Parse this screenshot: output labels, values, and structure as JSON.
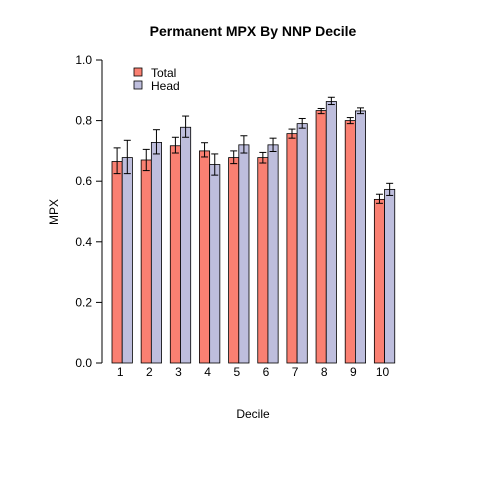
{
  "chart_data": {
    "type": "bar",
    "title": "Permanent MPX By NNP Decile",
    "xlabel": "Decile",
    "ylabel": "MPX",
    "categories": [
      "1",
      "2",
      "3",
      "4",
      "5",
      "6",
      "7",
      "8",
      "9",
      "10"
    ],
    "ylim": [
      0.0,
      1.0
    ],
    "yticks": [
      "0.0",
      "0.2",
      "0.4",
      "0.6",
      "0.8",
      "1.0"
    ],
    "legend_position": "top-left",
    "series": [
      {
        "name": "Total",
        "color": "#fa8072",
        "values": [
          0.665,
          0.67,
          0.717,
          0.7,
          0.678,
          0.678,
          0.757,
          0.833,
          0.8,
          0.54
        ],
        "err_low": [
          0.625,
          0.635,
          0.693,
          0.68,
          0.658,
          0.66,
          0.742,
          0.823,
          0.79,
          0.527
        ],
        "err_high": [
          0.71,
          0.705,
          0.745,
          0.727,
          0.7,
          0.695,
          0.772,
          0.84,
          0.81,
          0.557
        ]
      },
      {
        "name": "Head",
        "color": "#bebedd",
        "values": [
          0.678,
          0.728,
          0.778,
          0.655,
          0.72,
          0.72,
          0.79,
          0.863,
          0.832,
          0.573
        ],
        "err_low": [
          0.625,
          0.69,
          0.745,
          0.62,
          0.693,
          0.698,
          0.775,
          0.853,
          0.823,
          0.553
        ],
        "err_high": [
          0.735,
          0.77,
          0.815,
          0.69,
          0.75,
          0.742,
          0.807,
          0.877,
          0.842,
          0.593
        ]
      }
    ]
  }
}
